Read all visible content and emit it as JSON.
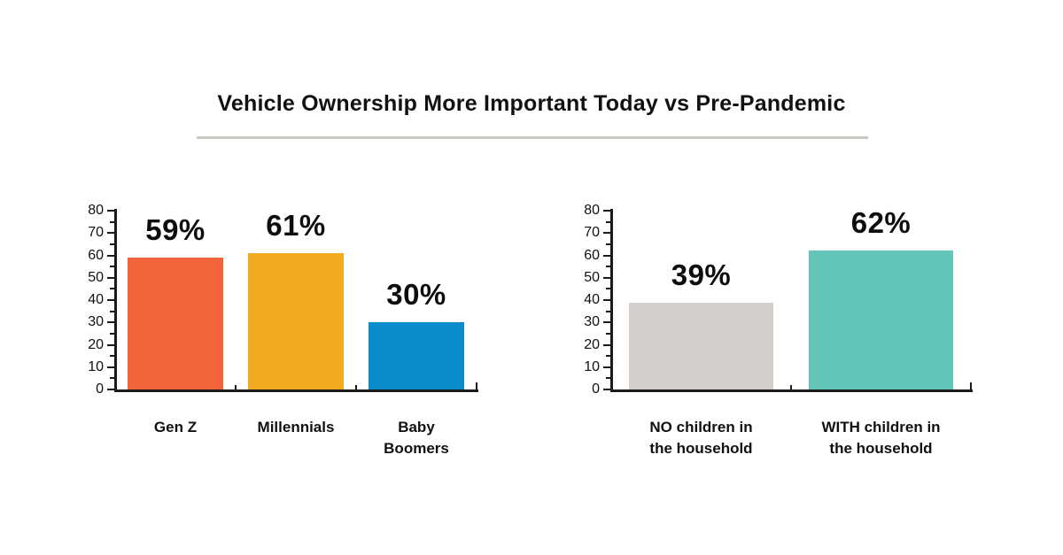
{
  "header": {
    "title": "Vehicle Ownership More Important Today vs Pre-Pandemic"
  },
  "chart_data": [
    {
      "type": "bar",
      "name": "by-generation",
      "categories": [
        "Gen Z",
        "Millennials",
        "Baby Boomers"
      ],
      "category_lines": [
        [
          "Gen Z"
        ],
        [
          "Millennials"
        ],
        [
          "Baby",
          "Boomers"
        ]
      ],
      "values": [
        59,
        61,
        30
      ],
      "value_labels": [
        "59%",
        "61%",
        "30%"
      ],
      "bar_colors": [
        "#F1633A",
        "#F0AB21",
        "#0A8CCD"
      ],
      "ylim": [
        0,
        80
      ],
      "yticks": [
        0,
        10,
        20,
        30,
        40,
        50,
        60,
        70,
        80
      ],
      "minor_tick_step": 5,
      "grid": false,
      "legend": "none",
      "xlabel": "",
      "ylabel": ""
    },
    {
      "type": "bar",
      "name": "by-children-in-household",
      "categories": [
        "NO children in the household",
        "WITH children in the household"
      ],
      "category_lines": [
        [
          "NO children in",
          "the household"
        ],
        [
          "WITH children in",
          "the household"
        ]
      ],
      "values": [
        39,
        62
      ],
      "value_labels": [
        "39%",
        "62%"
      ],
      "bar_colors": [
        "#D1CECB",
        "#62C5B7"
      ],
      "ylim": [
        0,
        80
      ],
      "yticks": [
        0,
        10,
        20,
        30,
        40,
        50,
        60,
        70,
        80
      ],
      "minor_tick_step": 5,
      "grid": false,
      "legend": "none",
      "xlabel": "",
      "ylabel": ""
    }
  ],
  "style": {
    "axis_color": "#1a1a1a",
    "text_color": "#0d0d0d",
    "divider_color": "#cbc8c4",
    "background": "#ffffff"
  }
}
